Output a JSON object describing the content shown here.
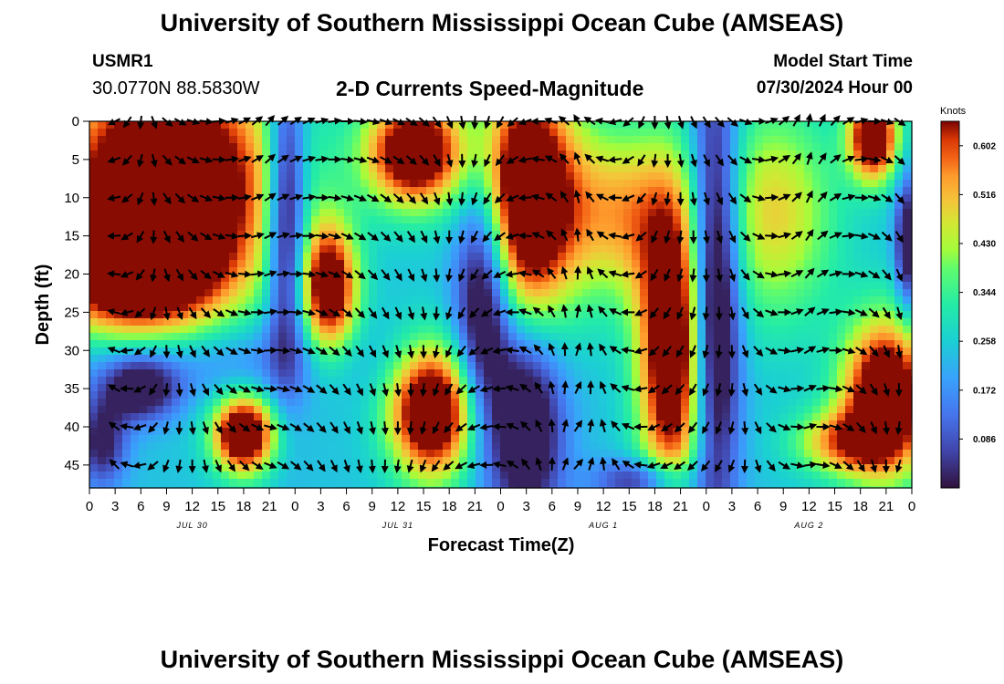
{
  "page": {
    "title_top": "University of Southern Mississippi Ocean Cube (AMSEAS)",
    "title_bottom": "University of Southern Mississippi Ocean Cube (AMSEAS)"
  },
  "station": {
    "id": "USMR1",
    "coords": "30.0770N  88.5830W"
  },
  "model_start": {
    "label": "Model Start Time",
    "value": "07/30/2024 Hour 00"
  },
  "chart_data": {
    "type": "heatmap",
    "title": "2-D Currents Speed-Magnitude",
    "xlabel": "Forecast Time(Z)",
    "ylabel": "Depth (ft)",
    "xlim": [
      0,
      96
    ],
    "ylim": [
      0,
      48
    ],
    "x_tick_labels": [
      "0",
      "3",
      "6",
      "9",
      "12",
      "15",
      "18",
      "21",
      "0",
      "3",
      "6",
      "9",
      "12",
      "15",
      "18",
      "21",
      "0",
      "3",
      "6",
      "9",
      "12",
      "15",
      "18",
      "21",
      "0",
      "3",
      "6",
      "9",
      "12",
      "15",
      "18",
      "21",
      "0"
    ],
    "y_ticks": [
      0,
      5,
      10,
      15,
      20,
      25,
      30,
      35,
      40,
      45
    ],
    "day_labels": [
      {
        "label": "JUL 30",
        "hour": 12
      },
      {
        "label": "JUL 31",
        "hour": 36
      },
      {
        "label": "AUG 1",
        "hour": 60
      },
      {
        "label": "AUG 2",
        "hour": 84
      }
    ],
    "colorbar": {
      "unit": "Knots",
      "ticks": [
        0.602,
        0.516,
        0.43,
        0.344,
        0.258,
        0.172,
        0.086
      ],
      "min": 0.0,
      "max": 0.645
    },
    "speed_features": [
      {
        "hour": 9,
        "depth": 8,
        "speed": 0.63,
        "sx": 9,
        "sd": 11
      },
      {
        "hour": 5,
        "depth": 20,
        "speed": 0.42,
        "sx": 7,
        "sd": 6
      },
      {
        "hour": 18,
        "depth": 41,
        "speed": 0.58,
        "sx": 2.5,
        "sd": 3.5
      },
      {
        "hour": 6,
        "depth": 35,
        "speed": -0.3,
        "sx": 3,
        "sd": 3
      },
      {
        "hour": 1.5,
        "depth": 42,
        "speed": -0.25,
        "sx": 2,
        "sd": 4
      },
      {
        "hour": 23,
        "depth": 12,
        "speed": -0.38,
        "sx": 1.6,
        "sd": 14
      },
      {
        "hour": 28,
        "depth": 22,
        "speed": 0.5,
        "sx": 2.3,
        "sd": 6
      },
      {
        "hour": 38,
        "depth": 4,
        "speed": 0.55,
        "sx": 4,
        "sd": 5
      },
      {
        "hour": 40,
        "depth": 38,
        "speed": 0.58,
        "sx": 3.5,
        "sd": 6
      },
      {
        "hour": 46,
        "depth": 22,
        "speed": -0.38,
        "sx": 2.3,
        "sd": 12
      },
      {
        "hour": 51,
        "depth": 10,
        "speed": 0.62,
        "sx": 4,
        "sd": 11
      },
      {
        "hour": 51,
        "depth": 40,
        "speed": -0.35,
        "sx": 3,
        "sd": 9
      },
      {
        "hour": 62,
        "depth": 12,
        "speed": 0.28,
        "sx": 5,
        "sd": 8
      },
      {
        "hour": 68,
        "depth": 30,
        "speed": 0.55,
        "sx": 2.8,
        "sd": 14
      },
      {
        "hour": 73,
        "depth": 22,
        "speed": -0.42,
        "sx": 2,
        "sd": 20
      },
      {
        "hour": 80,
        "depth": 12,
        "speed": 0.25,
        "sx": 5,
        "sd": 10
      },
      {
        "hour": 93,
        "depth": 36,
        "speed": 0.58,
        "sx": 3.5,
        "sd": 7
      },
      {
        "hour": 88,
        "depth": 42,
        "speed": 0.3,
        "sx": 4,
        "sd": 3
      },
      {
        "hour": 91.5,
        "depth": 2,
        "speed": 0.55,
        "sx": 2,
        "sd": 4
      },
      {
        "hour": 95.5,
        "depth": 16,
        "speed": -0.3,
        "sx": 1,
        "sd": 6
      },
      {
        "hour": 65,
        "depth": 47,
        "speed": -0.25,
        "sx": 4,
        "sd": 2
      },
      {
        "hour": 12,
        "depth": 31,
        "speed": -0.12,
        "sx": 14,
        "sd": 4
      }
    ],
    "direction_keys_deg": [
      {
        "hour": 0,
        "angle": 300
      },
      {
        "hour": 9,
        "angle": 130
      },
      {
        "hour": 21,
        "angle": 40
      },
      {
        "hour": 30,
        "angle": 90
      },
      {
        "hour": 39,
        "angle": 130
      },
      {
        "hour": 48,
        "angle": 210
      },
      {
        "hour": 57,
        "angle": 330
      },
      {
        "hour": 66,
        "angle": 180
      },
      {
        "hour": 75,
        "angle": 130
      },
      {
        "hour": 84,
        "angle": 10
      },
      {
        "hour": 96,
        "angle": 140
      }
    ]
  }
}
